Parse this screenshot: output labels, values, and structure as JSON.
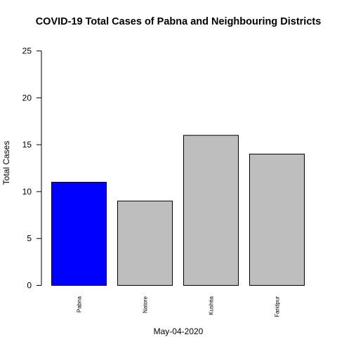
{
  "chart_data": {
    "type": "bar",
    "title": "COVID-19 Total Cases of Pabna and Neighbouring Districts",
    "xlabel": "May-04-2020",
    "ylabel": "Total Cases",
    "categories": [
      "Pabna",
      "Natore",
      "Kushtia",
      "Faridpur"
    ],
    "values": [
      11,
      9,
      16,
      14
    ],
    "bar_colors": [
      "#0000ff",
      "#bebebe",
      "#bebebe",
      "#bebebe"
    ],
    "ylim": [
      0,
      25
    ],
    "yticks": [
      0,
      5,
      10,
      15,
      20,
      25
    ],
    "grid": false,
    "legend": "none"
  }
}
